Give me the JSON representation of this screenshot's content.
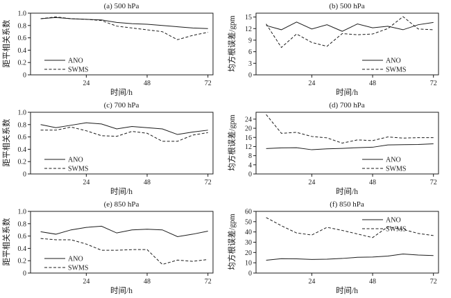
{
  "page": {
    "background": "#ffffff",
    "line_color": "#1a1a1a"
  },
  "legend": {
    "ano_label": "ANO",
    "swms_label": "SWMS"
  },
  "chart_data": [
    {
      "type": "line",
      "title": "(a) 500 hPa",
      "xlabel": "时间/h",
      "ylabel": "距平相关系数",
      "xlim": [
        2,
        74
      ],
      "ylim": [
        0,
        1
      ],
      "xticks": [
        24,
        48,
        72
      ],
      "yticks": [
        0,
        0.2,
        0.4,
        0.6,
        0.8,
        1.0
      ],
      "ytick_labels": [
        "0",
        "0.2",
        "0.4",
        "0.6",
        "0.8",
        "1.0"
      ],
      "x": [
        6,
        12,
        18,
        24,
        30,
        36,
        42,
        48,
        54,
        60,
        66,
        72
      ],
      "series": [
        {
          "name": "ANO",
          "style": "solid",
          "values": [
            0.91,
            0.93,
            0.91,
            0.9,
            0.89,
            0.85,
            0.83,
            0.82,
            0.8,
            0.78,
            0.76,
            0.75
          ]
        },
        {
          "name": "SWMS",
          "style": "dashed",
          "values": [
            0.91,
            0.94,
            0.91,
            0.9,
            0.88,
            0.79,
            0.76,
            0.73,
            0.7,
            0.57,
            0.64,
            0.69
          ]
        }
      ],
      "legend_pos": "bottom-left",
      "grid": false
    },
    {
      "type": "line",
      "title": "(b) 500 hPa",
      "xlabel": "时间/h",
      "ylabel": "均方根误差/gpm",
      "xlim": [
        2,
        74
      ],
      "ylim": [
        0,
        16
      ],
      "xticks": [
        24,
        48,
        72
      ],
      "yticks": [
        0,
        3,
        6,
        9,
        12,
        15
      ],
      "ytick_labels": [
        "0",
        "3",
        "6",
        "9",
        "12",
        "15"
      ],
      "x": [
        6,
        12,
        18,
        24,
        30,
        36,
        42,
        48,
        54,
        60,
        66,
        72
      ],
      "series": [
        {
          "name": "ANO",
          "style": "solid",
          "values": [
            12.8,
            11.7,
            13.7,
            11.9,
            13.0,
            11.3,
            13.2,
            12.2,
            12.6,
            11.7,
            13.0,
            13.6
          ]
        },
        {
          "name": "SWMS",
          "style": "dashed",
          "values": [
            13.2,
            7.1,
            10.6,
            8.4,
            7.4,
            10.7,
            10.4,
            10.6,
            12.0,
            15.1,
            11.9,
            11.7
          ]
        }
      ],
      "legend_pos": "bottom-right",
      "grid": false
    },
    {
      "type": "line",
      "title": "(c) 700 hPa",
      "xlabel": "时间/h",
      "ylabel": "距平相关系数",
      "xlim": [
        2,
        74
      ],
      "ylim": [
        0,
        1
      ],
      "xticks": [
        24,
        48,
        72
      ],
      "yticks": [
        0,
        0.2,
        0.4,
        0.6,
        0.8,
        1.0
      ],
      "ytick_labels": [
        "0",
        "0.2",
        "0.4",
        "0.6",
        "0.8",
        "1.0"
      ],
      "x": [
        6,
        12,
        18,
        24,
        30,
        36,
        42,
        48,
        54,
        60,
        66,
        72
      ],
      "series": [
        {
          "name": "ANO",
          "style": "solid",
          "values": [
            0.8,
            0.75,
            0.79,
            0.83,
            0.81,
            0.73,
            0.77,
            0.75,
            0.73,
            0.64,
            0.68,
            0.71
          ]
        },
        {
          "name": "SWMS",
          "style": "dashed",
          "values": [
            0.71,
            0.71,
            0.76,
            0.7,
            0.62,
            0.61,
            0.69,
            0.66,
            0.53,
            0.53,
            0.63,
            0.67
          ]
        }
      ],
      "legend_pos": "bottom-left",
      "grid": false
    },
    {
      "type": "line",
      "title": "(d) 700 hPa",
      "xlabel": "时间/h",
      "ylabel": "均方根误差/gpm",
      "xlim": [
        2,
        74
      ],
      "ylim": [
        0,
        27
      ],
      "xticks": [
        24,
        48,
        72
      ],
      "yticks": [
        0,
        4,
        8,
        12,
        16,
        20,
        24
      ],
      "ytick_labels": [
        "0",
        "4",
        "8",
        "12",
        "16",
        "20",
        "24"
      ],
      "x": [
        6,
        12,
        18,
        24,
        30,
        36,
        42,
        48,
        54,
        60,
        66,
        72
      ],
      "series": [
        {
          "name": "ANO",
          "style": "solid",
          "values": [
            11.1,
            11.4,
            11.5,
            10.6,
            11.0,
            11.2,
            11.5,
            11.7,
            12.7,
            12.8,
            12.9,
            13.2
          ]
        },
        {
          "name": "SWMS",
          "style": "dashed",
          "values": [
            26.0,
            17.8,
            18.2,
            16.4,
            15.8,
            13.5,
            14.9,
            14.6,
            16.2,
            15.7,
            15.9,
            15.9
          ]
        }
      ],
      "legend_pos": "bottom-right",
      "grid": false
    },
    {
      "type": "line",
      "title": "(e) 850 hPa",
      "xlabel": "时间/h",
      "ylabel": "距平相关系数",
      "xlim": [
        2,
        74
      ],
      "ylim": [
        0,
        1
      ],
      "xticks": [
        24,
        48,
        72
      ],
      "yticks": [
        0,
        0.2,
        0.4,
        0.6,
        0.8,
        1.0
      ],
      "ytick_labels": [
        "0",
        "0.2",
        "0.4",
        "0.6",
        "0.8",
        "1.0"
      ],
      "x": [
        6,
        12,
        18,
        24,
        30,
        36,
        42,
        48,
        54,
        60,
        66,
        72
      ],
      "series": [
        {
          "name": "ANO",
          "style": "solid",
          "values": [
            0.67,
            0.63,
            0.7,
            0.74,
            0.76,
            0.65,
            0.7,
            0.71,
            0.7,
            0.59,
            0.63,
            0.68
          ]
        },
        {
          "name": "SWMS",
          "style": "dashed",
          "values": [
            0.56,
            0.54,
            0.54,
            0.47,
            0.37,
            0.37,
            0.38,
            0.38,
            0.14,
            0.21,
            0.19,
            0.22
          ]
        }
      ],
      "legend_pos": "bottom-left",
      "grid": false
    },
    {
      "type": "line",
      "title": "(f) 850 hPa",
      "xlabel": "时间/h",
      "ylabel": "均方根误差/gpm",
      "xlim": [
        2,
        74
      ],
      "ylim": [
        0,
        60
      ],
      "xticks": [
        24,
        48,
        72
      ],
      "yticks": [
        0,
        10,
        20,
        30,
        40,
        50,
        60
      ],
      "ytick_labels": [
        "0",
        "10",
        "20",
        "30",
        "40",
        "50",
        "60"
      ],
      "x": [
        6,
        12,
        18,
        24,
        30,
        36,
        42,
        48,
        54,
        60,
        66,
        72
      ],
      "series": [
        {
          "name": "ANO",
          "style": "solid",
          "values": [
            12.5,
            14.0,
            13.8,
            13.2,
            13.5,
            14.2,
            15.3,
            15.6,
            16.5,
            18.5,
            17.5,
            17.0
          ]
        },
        {
          "name": "SWMS",
          "style": "dashed",
          "values": [
            54.0,
            46.0,
            39.0,
            37.0,
            44.5,
            41.5,
            38.0,
            34.5,
            45.0,
            42.5,
            38.5,
            36.5
          ]
        }
      ],
      "legend_pos": "top-right",
      "grid": false
    }
  ]
}
